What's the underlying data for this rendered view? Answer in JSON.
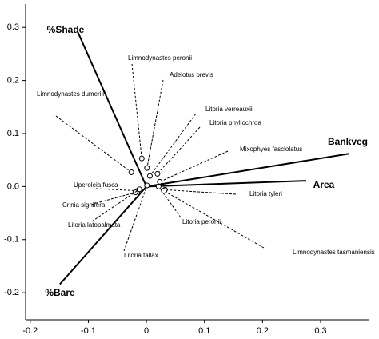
{
  "chart_data": {
    "type": "biplot",
    "xlim": [
      -0.208,
      0.384
    ],
    "ylim": [
      -0.251,
      0.344
    ],
    "xticks": [
      -0.2,
      -0.1,
      0,
      0.1,
      0.2,
      0.3
    ],
    "yticks": [
      0.3,
      0.2,
      0.1,
      {
        "value": 0,
        "label": "0.0"
      },
      -0.1,
      -0.2
    ],
    "vectors": [
      {
        "name": "%Shade",
        "x": -0.118,
        "y": 0.291
      },
      {
        "name": "Bankveg",
        "x": 0.349,
        "y": 0.062
      },
      {
        "name": "Area",
        "x": 0.275,
        "y": 0.011
      },
      {
        "name": "%Bare",
        "x": -0.149,
        "y": -0.184
      }
    ],
    "points": [
      {
        "name": "Limnodynastes peronii",
        "x": -0.008,
        "y": 0.053
      },
      {
        "name": "Adelotus brevis",
        "x": 0.001,
        "y": 0.035
      },
      {
        "name": "Limnodynastes dumeriii",
        "x": -0.026,
        "y": 0.027
      },
      {
        "name": "Litoria verreauxii",
        "x": 0.006,
        "y": 0.02
      },
      {
        "name": "Litoria phyllochroa",
        "x": 0.019,
        "y": 0.024
      },
      {
        "name": "Mixophyes fasciolatus",
        "x": 0.023,
        "y": 0.009
      },
      {
        "name": "Uperoleia fusca",
        "x": -0.015,
        "y": -0.008
      },
      {
        "name": "Crinia signifera",
        "x": -0.019,
        "y": -0.011
      },
      {
        "name": "Litoria latopalmata",
        "x": -0.012,
        "y": -0.005
      },
      {
        "name": "Litoria fallax",
        "x": 0.001,
        "y": 0.002
      },
      {
        "name": "Litoria peronii",
        "x": 0.021,
        "y": 0.0
      },
      {
        "name": "Litoria tyleri",
        "x": 0.032,
        "y": -0.006
      },
      {
        "name": "Limnodynastes tasmaniensis",
        "x": 0.03,
        "y": -0.008
      }
    ]
  }
}
